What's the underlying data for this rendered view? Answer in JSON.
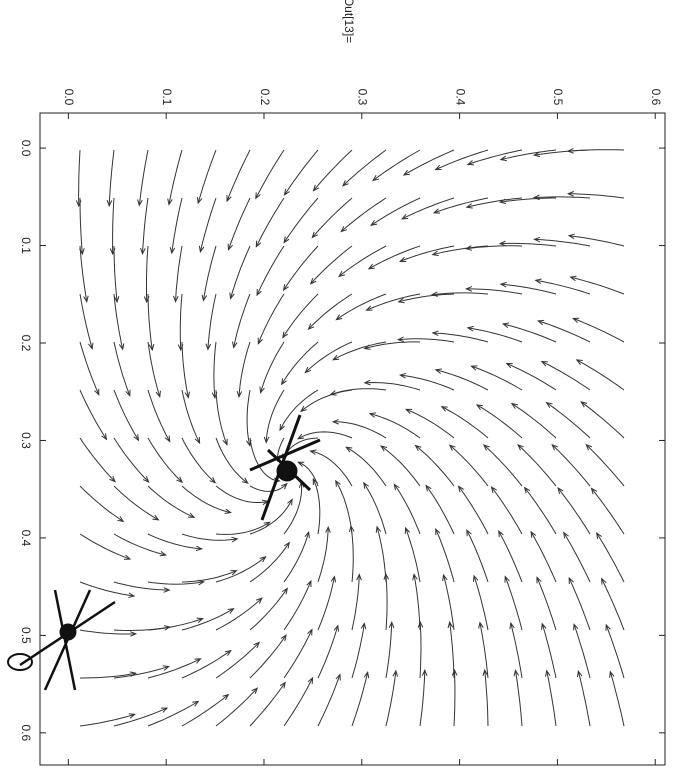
{
  "chart_data": {
    "type": "streamplot",
    "label": "Out[13]=",
    "xlim": [
      -0.036,
      0.633
    ],
    "xticks": [
      {
        "value": 0,
        "label": "0.0"
      },
      0.1,
      0.2,
      0.3,
      0.4,
      0.5,
      0.6
    ],
    "ylim": [
      -0.029,
      0.61
    ],
    "yticks": [
      {
        "value": 0,
        "label": "0.0"
      },
      0.1,
      0.2,
      0.3,
      0.4,
      0.5,
      0.6
    ],
    "color": "#333333"
  }
}
